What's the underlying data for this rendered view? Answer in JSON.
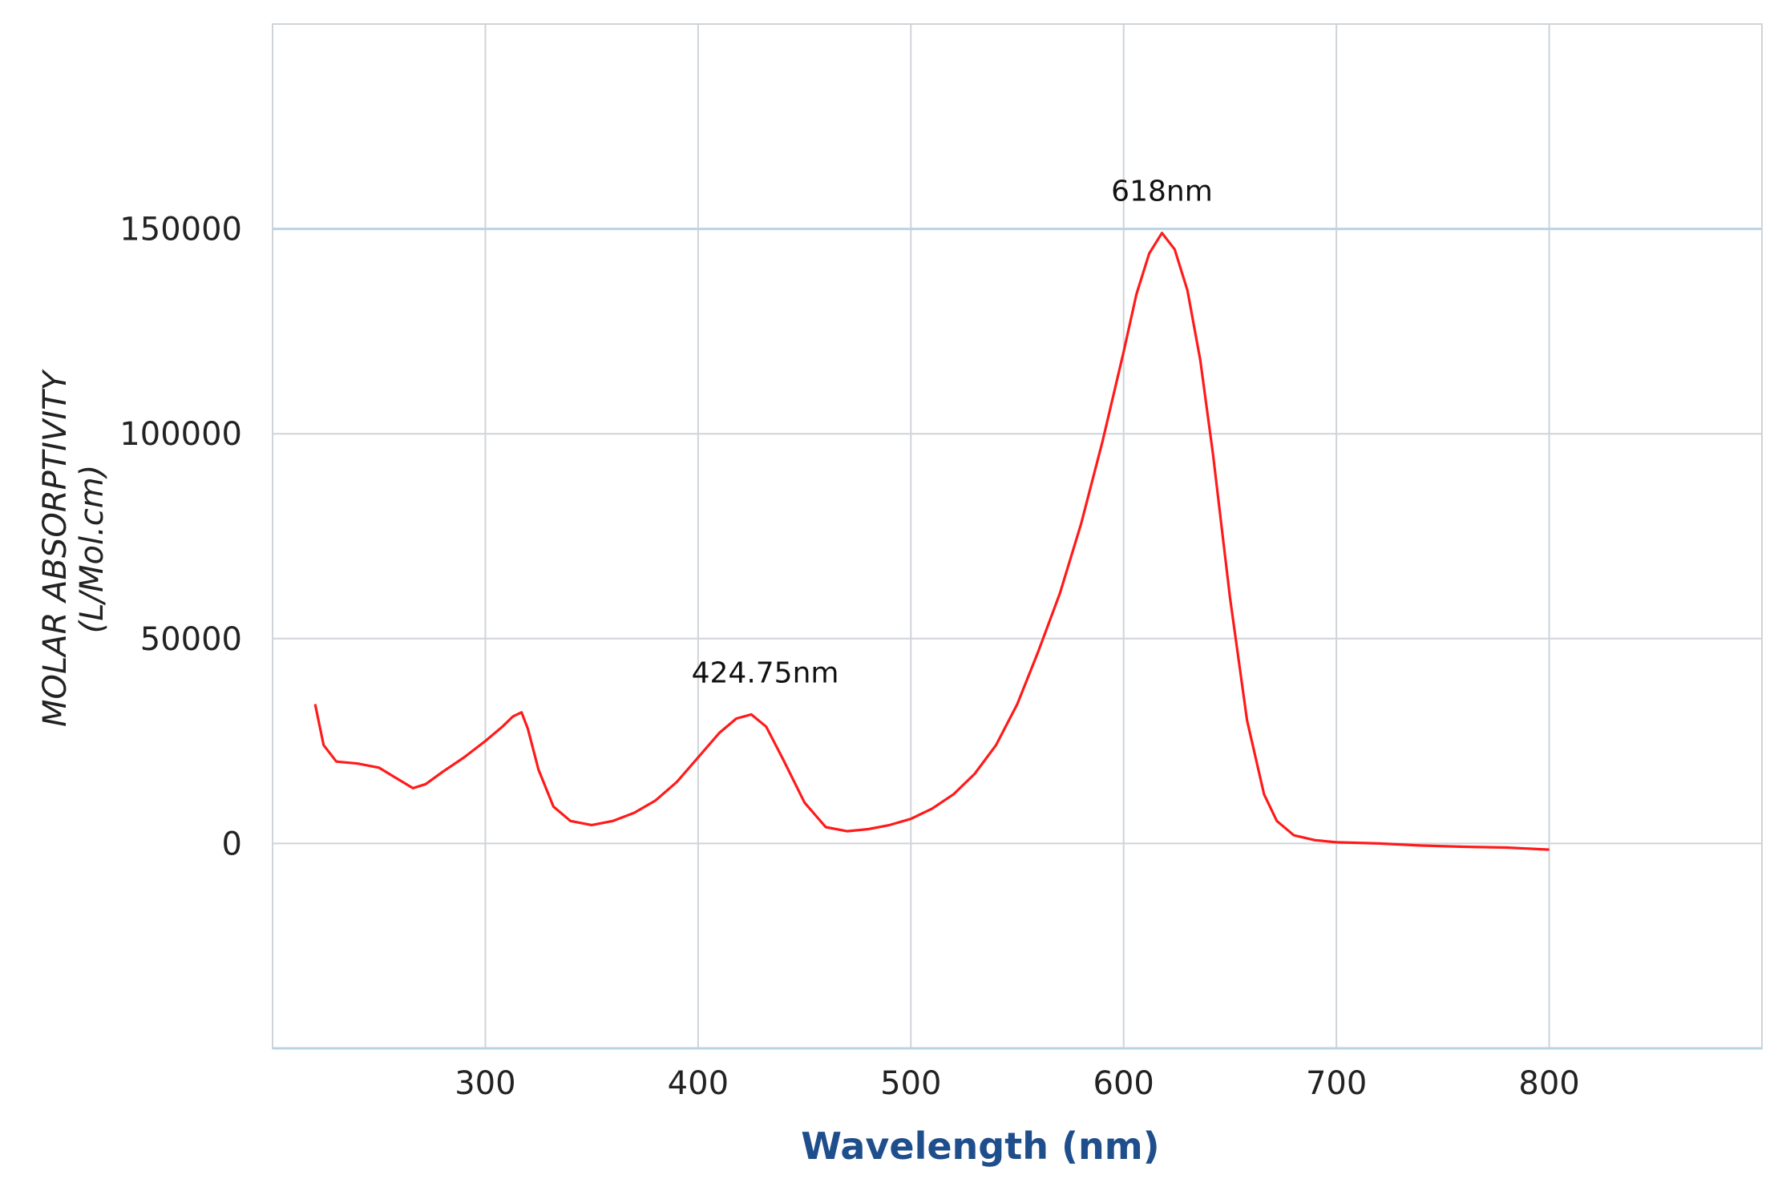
{
  "chart_data": {
    "type": "line",
    "title": "",
    "xlabel": "Wavelength (nm)",
    "ylabel_line1": "MOLAR ABSORPTIVITY",
    "ylabel_line2": "(L/Mol.cm)",
    "xlim": [
      200,
      900
    ],
    "ylim": [
      -50000,
      200000
    ],
    "x_ticks": [
      300,
      400,
      500,
      600,
      700,
      800
    ],
    "y_ticks": [
      0,
      50000,
      100000,
      150000
    ],
    "x_tick_labels": [
      "300",
      "400",
      "500",
      "600",
      "700",
      "800"
    ],
    "y_tick_labels": [
      "0",
      "50000",
      "100000",
      "150000"
    ],
    "grid": true,
    "colors": {
      "line": "#ff1a1a",
      "grid": "#cfd4d8",
      "axis_accent": "#b9d3e6"
    },
    "series": [
      {
        "x": [
          220,
          224,
          230,
          240,
          250,
          258,
          266,
          272,
          280,
          290,
          300,
          308,
          313,
          317,
          320,
          325,
          332,
          340,
          350,
          360,
          370,
          380,
          390,
          400,
          410,
          418,
          425,
          432,
          440,
          450,
          460,
          470,
          480,
          490,
          500,
          510,
          520,
          530,
          540,
          550,
          560,
          570,
          580,
          590,
          600,
          606,
          612,
          618,
          624,
          630,
          636,
          642,
          650,
          658,
          666,
          672,
          680,
          690,
          700,
          720,
          740,
          760,
          780,
          800
        ],
        "y": [
          34000,
          24000,
          20000,
          19500,
          18500,
          16000,
          13500,
          14500,
          17500,
          21000,
          25000,
          28500,
          31000,
          32000,
          28000,
          18000,
          9000,
          5500,
          4500,
          5500,
          7500,
          10500,
          15000,
          21000,
          27000,
          30500,
          31500,
          28500,
          20500,
          10000,
          4000,
          3000,
          3500,
          4500,
          6000,
          8500,
          12000,
          17000,
          24000,
          34000,
          47000,
          61000,
          78000,
          98000,
          120000,
          134000,
          144000,
          149000,
          145000,
          135000,
          118000,
          95000,
          60000,
          30000,
          12000,
          5500,
          2000,
          800,
          300,
          0,
          -500,
          -800,
          -1000,
          -1500
        ]
      }
    ],
    "annotations": [
      {
        "text": "618nm",
        "x": 618,
        "y": 149000
      },
      {
        "text": "424.75nm",
        "x": 424.75,
        "y": 31500
      }
    ]
  }
}
